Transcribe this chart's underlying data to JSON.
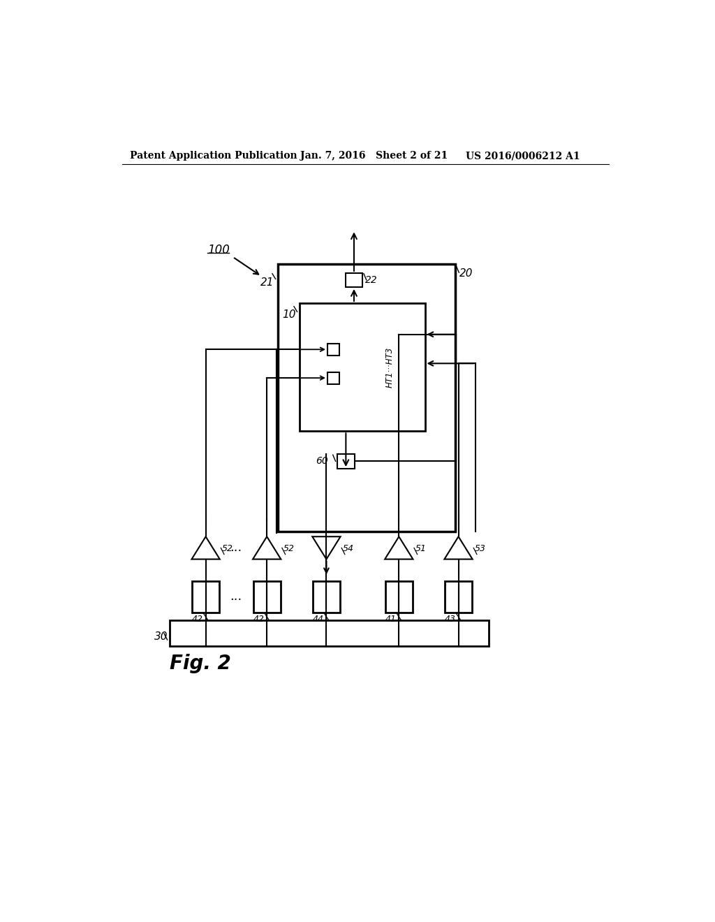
{
  "bg_color": "#ffffff",
  "header_left": "Patent Application Publication",
  "header_mid": "Jan. 7, 2016   Sheet 2 of 21",
  "header_right": "US 2016/0006212 A1",
  "fig_label": "Fig. 2",
  "label_100": "100",
  "label_20": "20",
  "label_21": "21",
  "label_22": "22",
  "label_10": "10",
  "label_60": "60",
  "label_HT": "HT1···HT3",
  "label_30": "30",
  "label_41": "41",
  "label_42a": "42",
  "label_42b": "42",
  "label_43": "43",
  "label_44": "44",
  "label_51": "51",
  "label_52a": "52",
  "label_52b": "52",
  "label_53": "53",
  "label_54": "54",
  "lw": 1.5,
  "lw_thick": 2.0,
  "lw_outer": 2.5
}
